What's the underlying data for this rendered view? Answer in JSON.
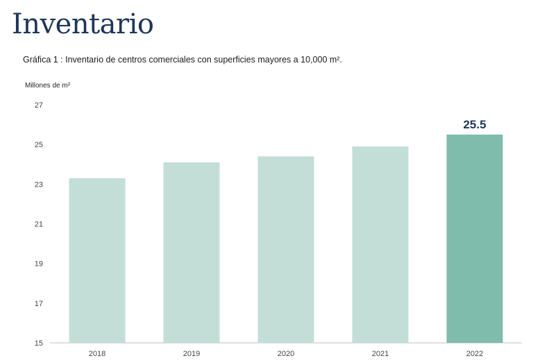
{
  "page": {
    "title": "Inventario",
    "subtitle": "Gráfica 1 : Inventario de centros comerciales con superficies mayores a 10,000 m².",
    "ylabel": "Millones de m²"
  },
  "chart_data": {
    "type": "bar",
    "title": "Gráfica 1 : Inventario de centros comerciales con superficies mayores a 10,000 m².",
    "xlabel": "",
    "ylabel": "Millones de m²",
    "categories": [
      "2018",
      "2019",
      "2020",
      "2021",
      "2022"
    ],
    "values": [
      23.3,
      24.1,
      24.4,
      24.9,
      25.5
    ],
    "ylim": [
      15,
      27
    ],
    "yticks": [
      "15",
      "17",
      "19",
      "21",
      "23",
      "25",
      "27"
    ],
    "highlight_index": 4,
    "data_labels": [
      null,
      null,
      null,
      null,
      "25.5"
    ],
    "colors": {
      "bar": "#c3ded6",
      "highlight": "#80bcac",
      "axis": "#bfbfbf",
      "label": "#1f3556"
    },
    "grid": false
  }
}
